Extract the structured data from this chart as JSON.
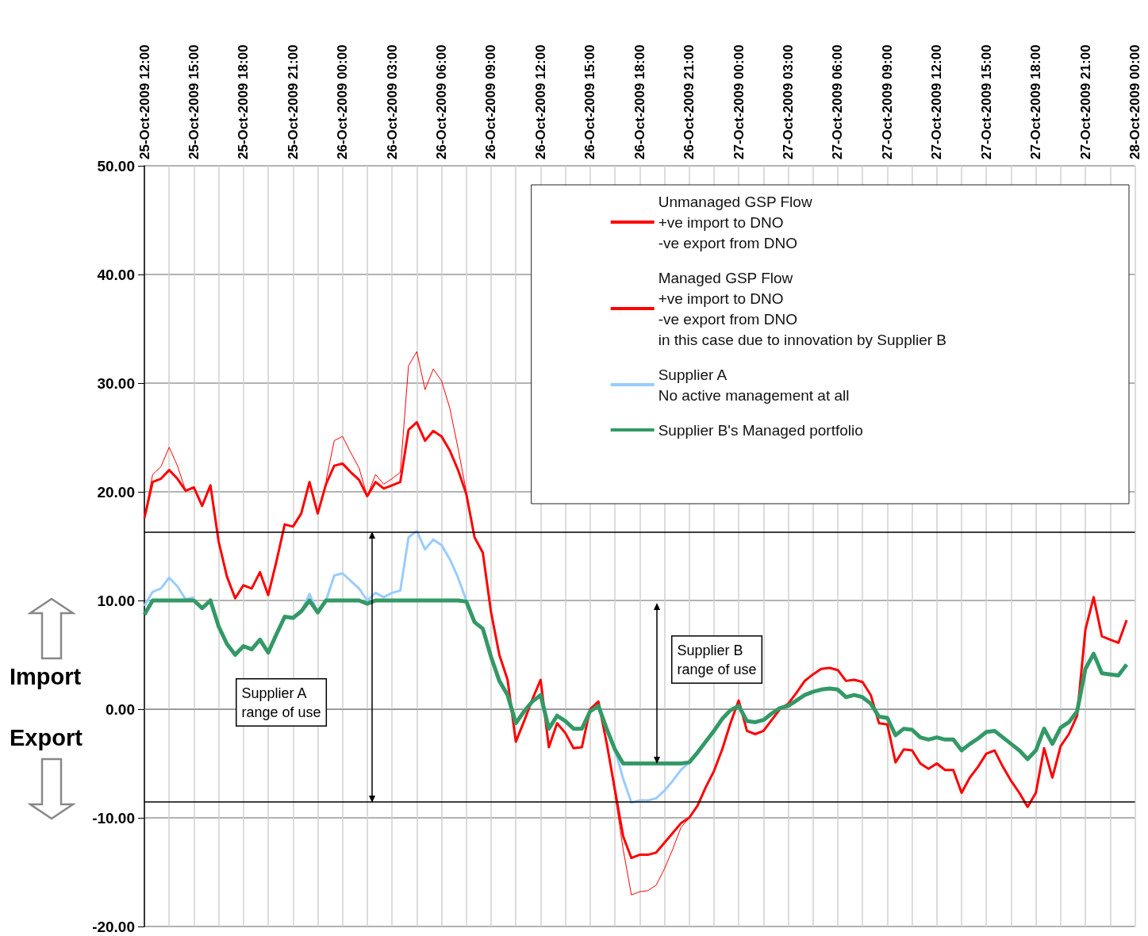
{
  "chart_data": {
    "type": "line",
    "x": [
      "2009-10-25T12:00",
      "2009-10-25T12:30",
      "2009-10-25T13:00",
      "2009-10-25T13:30",
      "2009-10-25T14:00",
      "2009-10-25T14:30",
      "2009-10-25T15:00",
      "2009-10-25T15:30",
      "2009-10-25T16:00",
      "2009-10-25T16:30",
      "2009-10-25T17:00",
      "2009-10-25T17:30",
      "2009-10-25T18:00",
      "2009-10-25T18:30",
      "2009-10-25T19:00",
      "2009-10-25T19:30",
      "2009-10-25T20:00",
      "2009-10-25T20:30",
      "2009-10-25T21:00",
      "2009-10-25T21:30",
      "2009-10-25T22:00",
      "2009-10-25T22:30",
      "2009-10-25T23:00",
      "2009-10-25T23:30",
      "2009-10-26T00:00",
      "2009-10-26T00:30",
      "2009-10-26T01:00",
      "2009-10-26T01:30",
      "2009-10-26T02:00",
      "2009-10-26T02:30",
      "2009-10-26T03:00",
      "2009-10-26T03:30",
      "2009-10-26T04:00",
      "2009-10-26T04:30",
      "2009-10-26T05:00",
      "2009-10-26T05:30",
      "2009-10-26T06:00",
      "2009-10-26T06:30",
      "2009-10-26T07:00",
      "2009-10-26T07:30",
      "2009-10-26T08:00",
      "2009-10-26T08:30",
      "2009-10-26T09:00",
      "2009-10-26T09:30",
      "2009-10-26T10:00",
      "2009-10-26T10:30",
      "2009-10-26T11:00",
      "2009-10-26T11:30",
      "2009-10-26T12:00",
      "2009-10-26T12:30",
      "2009-10-26T13:00",
      "2009-10-26T13:30",
      "2009-10-26T14:00",
      "2009-10-26T14:30",
      "2009-10-26T15:00",
      "2009-10-26T15:30",
      "2009-10-26T16:00",
      "2009-10-26T16:30",
      "2009-10-26T17:00",
      "2009-10-26T17:30",
      "2009-10-26T18:00",
      "2009-10-26T18:30",
      "2009-10-26T19:00",
      "2009-10-26T19:30",
      "2009-10-26T20:00",
      "2009-10-26T20:30",
      "2009-10-26T21:00",
      "2009-10-26T21:30",
      "2009-10-26T22:00",
      "2009-10-26T22:30",
      "2009-10-26T23:00",
      "2009-10-26T23:30",
      "2009-10-27T00:00",
      "2009-10-27T00:30",
      "2009-10-27T01:00",
      "2009-10-27T01:30",
      "2009-10-27T02:00",
      "2009-10-27T02:30",
      "2009-10-27T03:00",
      "2009-10-27T03:30",
      "2009-10-27T04:00",
      "2009-10-27T04:30",
      "2009-10-27T05:00",
      "2009-10-27T05:30",
      "2009-10-27T06:00",
      "2009-10-27T06:30",
      "2009-10-27T07:00",
      "2009-10-27T07:30",
      "2009-10-27T08:00",
      "2009-10-27T08:30",
      "2009-10-27T09:00",
      "2009-10-27T09:30",
      "2009-10-27T10:00",
      "2009-10-27T10:30",
      "2009-10-27T11:00",
      "2009-10-27T11:30",
      "2009-10-27T12:00",
      "2009-10-27T12:30",
      "2009-10-27T13:00",
      "2009-10-27T13:30",
      "2009-10-27T14:00",
      "2009-10-27T14:30",
      "2009-10-27T15:00",
      "2009-10-27T15:30",
      "2009-10-27T16:00",
      "2009-10-27T16:30",
      "2009-10-27T17:00",
      "2009-10-27T17:30",
      "2009-10-27T18:00",
      "2009-10-27T18:30",
      "2009-10-27T19:00",
      "2009-10-27T19:30",
      "2009-10-27T20:00",
      "2009-10-27T20:30",
      "2009-10-27T21:00",
      "2009-10-27T21:30",
      "2009-10-27T22:00",
      "2009-10-27T22:30",
      "2009-10-27T23:00",
      "2009-10-27T23:30"
    ],
    "series": [
      {
        "name": "Unmanaged GSP Flow\n+ve import to DNO\n-ve export from DNO",
        "color": "#ff0000",
        "values": [
          17.6,
          21.6,
          22.3,
          24.1,
          22.4,
          20.1,
          null,
          null,
          null,
          null,
          null,
          null,
          null,
          null,
          null,
          null,
          null,
          null,
          null,
          null,
          null,
          null,
          21.0,
          24.7,
          25.1,
          23.6,
          22.2,
          19.6,
          21.6,
          20.7,
          21.2,
          21.8,
          31.6,
          32.9,
          29.4,
          31.3,
          30.2,
          27.7,
          24.0,
          20.0,
          15.8,
          null,
          null,
          null,
          null,
          null,
          null,
          null,
          null,
          null,
          null,
          null,
          null,
          null,
          null,
          null,
          -3.1,
          -7.8,
          -12.9,
          -17.1,
          -16.8,
          -16.7,
          -16.2,
          -14.7,
          -12.9,
          -10.9,
          -10.0,
          null,
          null,
          null,
          null,
          null,
          null,
          null,
          null,
          null,
          null,
          null,
          null,
          null,
          null,
          null,
          null,
          null,
          null,
          null,
          null,
          null,
          null,
          null,
          null,
          null,
          null,
          null,
          null,
          null,
          null,
          null,
          null,
          null,
          null,
          null,
          null,
          null,
          null,
          null,
          null,
          null,
          null,
          null,
          null,
          null,
          null,
          null,
          null,
          null,
          null,
          null,
          null,
          null
        ]
      },
      {
        "name": "Managed GSP Flow\n+ve import to DNO\n-ve export from DNO\nin this case due to innovation by Supplier B",
        "color": "#ff0000",
        "values": [
          17.6,
          20.9,
          21.2,
          22.0,
          21.2,
          20.1,
          20.4,
          18.7,
          20.6,
          15.4,
          12.2,
          10.2,
          11.4,
          11.1,
          12.6,
          10.5,
          13.6,
          17.0,
          16.8,
          18.0,
          20.9,
          18.0,
          20.7,
          22.4,
          22.6,
          21.8,
          21.1,
          19.6,
          20.9,
          20.3,
          20.6,
          20.9,
          25.7,
          26.4,
          24.7,
          25.6,
          25.1,
          23.8,
          22.0,
          19.8,
          15.8,
          14.4,
          8.9,
          5.0,
          2.7,
          -3.0,
          -1.1,
          0.9,
          2.7,
          -3.5,
          -1.3,
          -2.2,
          -3.6,
          -3.5,
          0.0,
          0.7,
          -3.1,
          -7.4,
          -11.7,
          -13.7,
          -13.4,
          -13.4,
          -13.2,
          -12.3,
          -11.4,
          -10.5,
          -10.0,
          -8.9,
          -7.2,
          -5.7,
          -3.7,
          -1.3,
          0.8,
          -2.0,
          -2.3,
          -2.0,
          -1.0,
          0.0,
          0.5,
          1.5,
          2.6,
          3.2,
          3.7,
          3.8,
          3.6,
          2.6,
          2.7,
          2.5,
          1.3,
          -1.3,
          -1.4,
          -4.9,
          -3.7,
          -3.8,
          -5.0,
          -5.5,
          -5.0,
          -5.6,
          -5.6,
          -7.7,
          -6.3,
          -5.3,
          -4.1,
          -3.8,
          -5.3,
          -6.6,
          -7.7,
          -9.0,
          -7.7,
          -3.6,
          -6.3,
          -3.4,
          -2.3,
          -0.6,
          7.3,
          10.3,
          6.7,
          6.4,
          6.1,
          8.2
        ]
      },
      {
        "name": "Supplier A\nNo active management at all",
        "color": "#99ccff",
        "values": [
          9.5,
          10.8,
          11.1,
          12.1,
          11.3,
          10.1,
          10.3,
          null,
          null,
          null,
          null,
          null,
          null,
          null,
          null,
          null,
          null,
          null,
          null,
          9.0,
          10.6,
          8.9,
          10.0,
          12.3,
          12.5,
          11.8,
          11.1,
          10.0,
          10.7,
          10.3,
          10.7,
          10.9,
          15.8,
          16.4,
          14.7,
          15.6,
          15.1,
          13.8,
          12.1,
          10.0,
          8.0,
          null,
          null,
          null,
          null,
          null,
          null,
          null,
          null,
          null,
          null,
          null,
          null,
          null,
          null,
          null,
          null,
          -3.7,
          -6.4,
          -8.6,
          -8.4,
          -8.4,
          -8.2,
          -7.5,
          -6.6,
          -5.6,
          -4.9,
          null,
          null,
          null,
          null,
          null,
          null,
          null,
          null,
          null,
          null,
          null,
          null,
          null,
          null,
          null,
          null,
          null,
          null,
          null,
          null,
          null,
          null,
          null,
          null,
          null,
          null,
          null,
          null,
          null,
          null,
          null,
          null,
          null,
          null,
          null,
          null,
          null,
          null,
          null,
          null,
          null,
          null,
          null,
          null,
          null,
          null,
          null,
          null,
          null,
          null,
          null,
          null,
          null
        ]
      },
      {
        "name": "Supplier B's Managed portfolio",
        "color": "#339966",
        "values": [
          8.7,
          10.0,
          10,
          10,
          10,
          10,
          10,
          9.3,
          10.0,
          7.6,
          6.0,
          5.0,
          5.8,
          5.5,
          6.4,
          5.2,
          6.9,
          8.5,
          8.4,
          9.0,
          10.0,
          8.9,
          10,
          10,
          10,
          10,
          10,
          9.7,
          10,
          10,
          10,
          10,
          10,
          10,
          10,
          10,
          10,
          10,
          10,
          9.9,
          8.0,
          7.4,
          4.8,
          2.6,
          1.3,
          -1.3,
          -0.2,
          0.7,
          1.3,
          -1.8,
          -0.6,
          -1.1,
          -1.8,
          -1.8,
          -0.2,
          0.3,
          -1.8,
          -3.7,
          -5,
          -5,
          -5,
          -5,
          -5,
          -5,
          -5,
          -5,
          -4.9,
          -4.0,
          -3.0,
          -2.0,
          -0.9,
          -0.1,
          0.3,
          -1.1,
          -1.2,
          -1.0,
          -0.4,
          0.1,
          0.3,
          0.8,
          1.3,
          1.6,
          1.8,
          1.9,
          1.8,
          1.1,
          1.3,
          1.1,
          0.5,
          -0.7,
          -0.8,
          -2.4,
          -1.8,
          -1.9,
          -2.6,
          -2.8,
          -2.6,
          -2.8,
          -2.8,
          -3.8,
          -3.2,
          -2.7,
          -2.1,
          -2.0,
          -2.6,
          -3.2,
          -3.8,
          -4.6,
          -3.8,
          -1.8,
          -3.2,
          -1.7,
          -1.2,
          -0.2,
          3.7,
          5.1,
          3.3,
          3.2,
          3.1,
          4.1
        ]
      }
    ],
    "xlim": [
      "2009-10-25T12:00",
      "2009-10-28T00:00"
    ],
    "xticks": [
      {
        "value": "2009-10-25T12:00",
        "label": "25-Oct-2009 12:00"
      },
      {
        "value": "2009-10-25T13:30",
        "label": null
      },
      {
        "value": "2009-10-25T15:00",
        "label": "25-Oct-2009 15:00"
      },
      {
        "value": "2009-10-25T16:30",
        "label": null
      },
      {
        "value": "2009-10-25T18:00",
        "label": "25-Oct-2009 18:00"
      },
      {
        "value": "2009-10-25T19:30",
        "label": null
      },
      {
        "value": "2009-10-25T21:00",
        "label": "25-Oct-2009 21:00"
      },
      {
        "value": "2009-10-25T22:30",
        "label": null
      },
      {
        "value": "2009-10-26T00:00",
        "label": "26-Oct-2009 00:00"
      },
      {
        "value": "2009-10-26T01:30",
        "label": null
      },
      {
        "value": "2009-10-26T03:00",
        "label": "26-Oct-2009 03:00"
      },
      {
        "value": "2009-10-26T04:30",
        "label": null
      },
      {
        "value": "2009-10-26T06:00",
        "label": "26-Oct-2009 06:00"
      },
      {
        "value": "2009-10-26T07:30",
        "label": null
      },
      {
        "value": "2009-10-26T09:00",
        "label": "26-Oct-2009 09:00"
      },
      {
        "value": "2009-10-26T10:30",
        "label": null
      },
      {
        "value": "2009-10-26T12:00",
        "label": "26-Oct-2009 12:00"
      },
      {
        "value": "2009-10-26T13:30",
        "label": null
      },
      {
        "value": "2009-10-26T15:00",
        "label": "26-Oct-2009 15:00"
      },
      {
        "value": "2009-10-26T16:30",
        "label": null
      },
      {
        "value": "2009-10-26T18:00",
        "label": "26-Oct-2009 18:00"
      },
      {
        "value": "2009-10-26T19:30",
        "label": null
      },
      {
        "value": "2009-10-26T21:00",
        "label": "26-Oct-2009 21:00"
      },
      {
        "value": "2009-10-26T22:30",
        "label": null
      },
      {
        "value": "2009-10-27T00:00",
        "label": "27-Oct-2009 00:00"
      },
      {
        "value": "2009-10-27T01:30",
        "label": null
      },
      {
        "value": "2009-10-27T03:00",
        "label": "27-Oct-2009 03:00"
      },
      {
        "value": "2009-10-27T04:30",
        "label": null
      },
      {
        "value": "2009-10-27T06:00",
        "label": "27-Oct-2009 06:00"
      },
      {
        "value": "2009-10-27T07:30",
        "label": null
      },
      {
        "value": "2009-10-27T09:00",
        "label": "27-Oct-2009 09:00"
      },
      {
        "value": "2009-10-27T10:30",
        "label": null
      },
      {
        "value": "2009-10-27T12:00",
        "label": "27-Oct-2009 12:00"
      },
      {
        "value": "2009-10-27T13:30",
        "label": null
      },
      {
        "value": "2009-10-27T15:00",
        "label": "27-Oct-2009 15:00"
      },
      {
        "value": "2009-10-27T16:30",
        "label": null
      },
      {
        "value": "2009-10-27T18:00",
        "label": "27-Oct-2009 18:00"
      },
      {
        "value": "2009-10-27T19:30",
        "label": null
      },
      {
        "value": "2009-10-27T21:00",
        "label": "27-Oct-2009 21:00"
      },
      {
        "value": "2009-10-27T22:30",
        "label": null
      },
      {
        "value": "2009-10-28T00:00",
        "label": "28-Oct-2009 00:00"
      }
    ],
    "ylim": [
      -20,
      50
    ],
    "yticks": [
      {
        "value": -20,
        "label": "-20.00"
      },
      {
        "value": -10,
        "label": "-10.00"
      },
      {
        "value": 0,
        "label": "0.00"
      },
      {
        "value": 10,
        "label": "10.00"
      },
      {
        "value": 20,
        "label": "20.00"
      },
      {
        "value": 30,
        "label": "30.00"
      },
      {
        "value": 40,
        "label": "40.00"
      },
      {
        "value": 50,
        "label": "50.00"
      }
    ],
    "ref_lines": [
      {
        "axis": "y",
        "value": 16.3,
        "color": "#000000"
      },
      {
        "axis": "y",
        "value": -8.5,
        "color": "#000000"
      }
    ],
    "annotations": [
      "Import",
      "Export",
      "Supplier A\nrange of use",
      "Supplier B\nrange of use"
    ],
    "grid": true,
    "legend": "top right",
    "marker": "none"
  }
}
